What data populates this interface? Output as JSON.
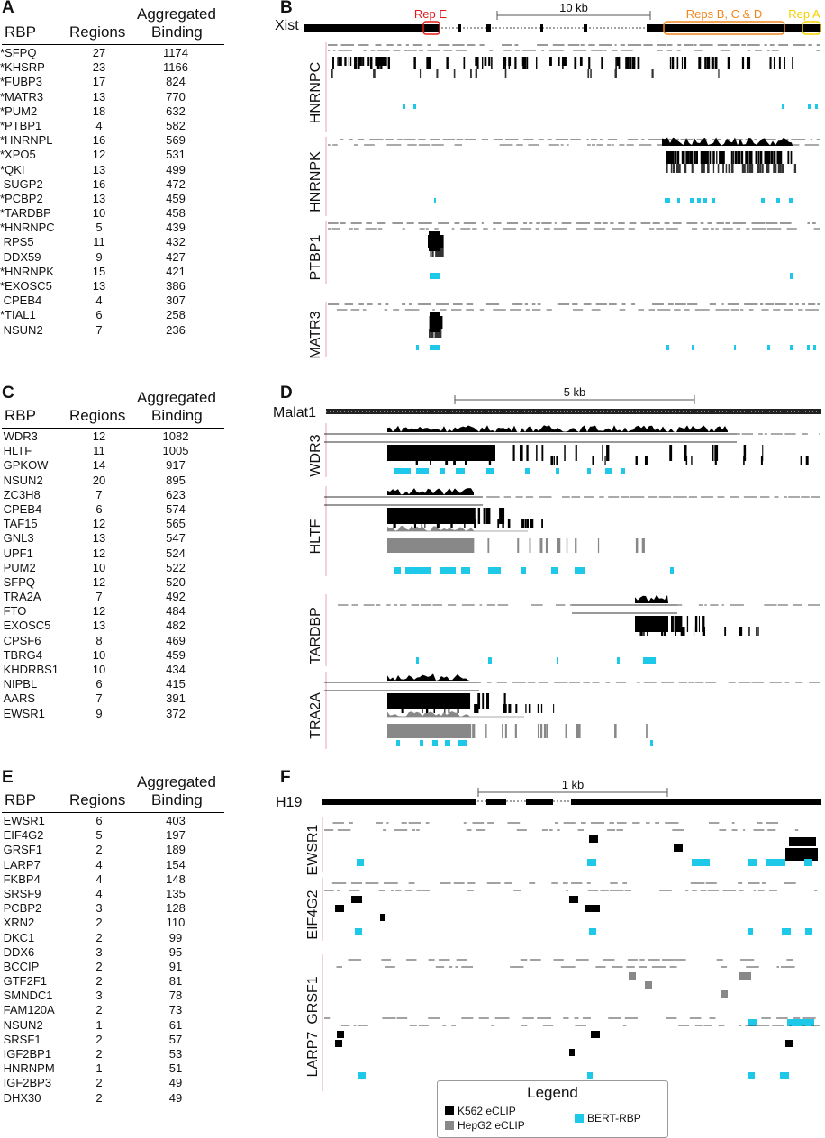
{
  "panels": {
    "A": "A",
    "B": "B",
    "C": "C",
    "D": "D",
    "E": "E",
    "F": "F"
  },
  "table_headers": {
    "rbp": "RBP",
    "regions": "Regions",
    "agg1": "Aggregated",
    "agg2": "Binding"
  },
  "table_A": [
    [
      "*SFPQ",
      "27",
      "1174"
    ],
    [
      "*KHSRP",
      "23",
      "1166"
    ],
    [
      "*FUBP3",
      "17",
      "824"
    ],
    [
      "*MATR3",
      "13",
      "770"
    ],
    [
      "*PUM2",
      "18",
      "632"
    ],
    [
      "*PTBP1",
      "4",
      "582"
    ],
    [
      "*HNRNPL",
      "16",
      "569"
    ],
    [
      "*XPO5",
      "12",
      "531"
    ],
    [
      "*QKI",
      "13",
      "499"
    ],
    [
      "SUGP2",
      "16",
      "472"
    ],
    [
      "*PCBP2",
      "13",
      "459"
    ],
    [
      "*TARDBP",
      "10",
      "458"
    ],
    [
      "*HNRNPC",
      "5",
      "439"
    ],
    [
      "RPS5",
      "11",
      "432"
    ],
    [
      "DDX59",
      "9",
      "427"
    ],
    [
      "*HNRNPK",
      "15",
      "421"
    ],
    [
      "*EXOSC5",
      "13",
      "386"
    ],
    [
      "CPEB4",
      "4",
      "307"
    ],
    [
      "*TIAL1",
      "6",
      "258"
    ],
    [
      "NSUN2",
      "7",
      "236"
    ]
  ],
  "table_C": [
    [
      "WDR3",
      "12",
      "1082"
    ],
    [
      "HLTF",
      "11",
      "1005"
    ],
    [
      "GPKOW",
      "14",
      "917"
    ],
    [
      "NSUN2",
      "20",
      "895"
    ],
    [
      "ZC3H8",
      "7",
      "623"
    ],
    [
      "CPEB4",
      "6",
      "574"
    ],
    [
      "TAF15",
      "12",
      "565"
    ],
    [
      "GNL3",
      "13",
      "547"
    ],
    [
      "UPF1",
      "12",
      "524"
    ],
    [
      "PUM2",
      "10",
      "522"
    ],
    [
      "SFPQ",
      "12",
      "520"
    ],
    [
      "TRA2A",
      "7",
      "492"
    ],
    [
      "FTO",
      "12",
      "484"
    ],
    [
      "EXOSC5",
      "13",
      "482"
    ],
    [
      "CPSF6",
      "8",
      "469"
    ],
    [
      "TBRG4",
      "10",
      "459"
    ],
    [
      "KHDRBS1",
      "10",
      "434"
    ],
    [
      "NIPBL",
      "6",
      "415"
    ],
    [
      "AARS",
      "7",
      "391"
    ],
    [
      "EWSR1",
      "9",
      "372"
    ]
  ],
  "table_E": [
    [
      "EWSR1",
      "6",
      "403"
    ],
    [
      "EIF4G2",
      "5",
      "197"
    ],
    [
      "GRSF1",
      "2",
      "189"
    ],
    [
      "LARP7",
      "4",
      "154"
    ],
    [
      "FKBP4",
      "4",
      "148"
    ],
    [
      "SRSF9",
      "4",
      "135"
    ],
    [
      "PCBP2",
      "3",
      "128"
    ],
    [
      "XRN2",
      "2",
      "110"
    ],
    [
      "DKC1",
      "2",
      "99"
    ],
    [
      "DDX6",
      "3",
      "95"
    ],
    [
      "BCCIP",
      "2",
      "91"
    ],
    [
      "GTF2F1",
      "2",
      "81"
    ],
    [
      "SMNDC1",
      "3",
      "78"
    ],
    [
      "FAM120A",
      "2",
      "73"
    ],
    [
      "NSUN2",
      "1",
      "61"
    ],
    [
      "SRSF1",
      "2",
      "57"
    ],
    [
      "IGF2BP1",
      "2",
      "53"
    ],
    [
      "HNRNPM",
      "1",
      "51"
    ],
    [
      "IGF2BP3",
      "2",
      "49"
    ],
    [
      "DHX30",
      "2",
      "49"
    ]
  ],
  "panel_B": {
    "gene": "Xist",
    "scale": "10 kb",
    "rep_e": "Rep E",
    "reps_bcd": "Reps B, C & D",
    "rep_a": "Rep A",
    "tracks": [
      "HNRNPC",
      "HNRNPK",
      "PTBP1",
      "MATR3"
    ],
    "colors": {
      "rep_e": "#e31a1c",
      "reps_bcd": "#f0861e",
      "rep_a": "#f5d000"
    }
  },
  "panel_D": {
    "gene": "Malat1",
    "scale": "5 kb",
    "tracks": [
      "WDR3",
      "HLTF",
      "TARDBP",
      "TRA2A"
    ]
  },
  "panel_F": {
    "gene": "H19",
    "scale": "1 kb",
    "tracks": [
      "EWSR1",
      "EIF4G2",
      "GRSF1",
      "LARP7"
    ]
  },
  "legend": {
    "title": "Legend",
    "k562": "K562 eCLIP",
    "hepg2": "HepG2 eCLIP",
    "bert": "BERT-RBP"
  },
  "colors": {
    "k562": "#000000",
    "hepg2": "#888888",
    "bert": "#1ec8e8"
  }
}
